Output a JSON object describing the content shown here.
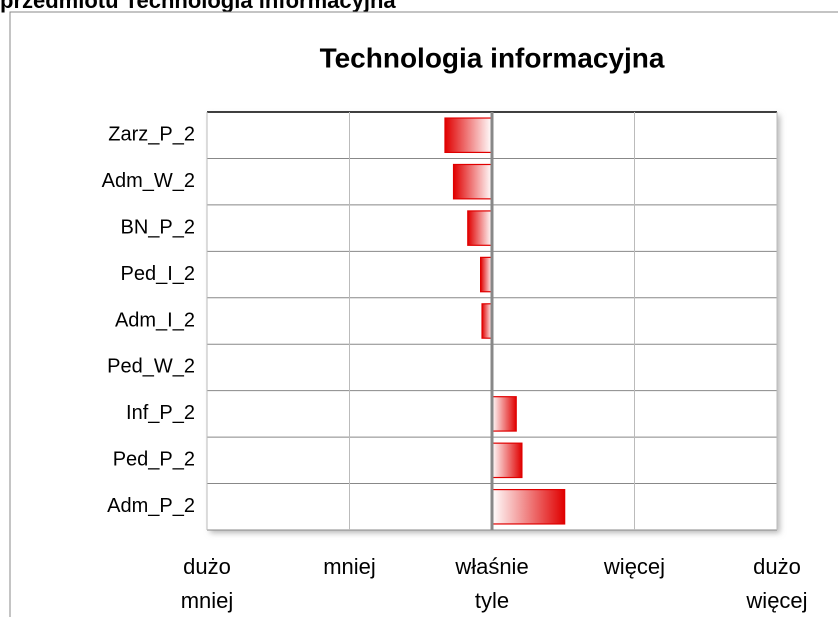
{
  "header": "przedmiotu Technologia informacyjna",
  "chart_data": {
    "type": "bar",
    "orientation": "horizontal",
    "title": "Technologia informacyjna",
    "categories": [
      "Zarz_P_2",
      "Adm_W_2",
      "BN_P_2",
      "Ped_I_2",
      "Adm_I_2",
      "Ped_W_2",
      "Inf_P_2",
      "Ped_P_2",
      "Adm_P_2"
    ],
    "values": [
      -0.33,
      -0.27,
      -0.17,
      -0.08,
      -0.07,
      0,
      0.17,
      0.21,
      0.51
    ],
    "color": "#e00000",
    "xlim": [
      -2,
      2
    ],
    "xticks": [
      {
        "value": -2,
        "label": "dużo mniej"
      },
      {
        "value": -1,
        "label": "mniej"
      },
      {
        "value": 0,
        "label": "właśnie tyle"
      },
      {
        "value": 1,
        "label": "więcej"
      },
      {
        "value": 2,
        "label": "dużo więcej"
      }
    ],
    "grid": true
  }
}
